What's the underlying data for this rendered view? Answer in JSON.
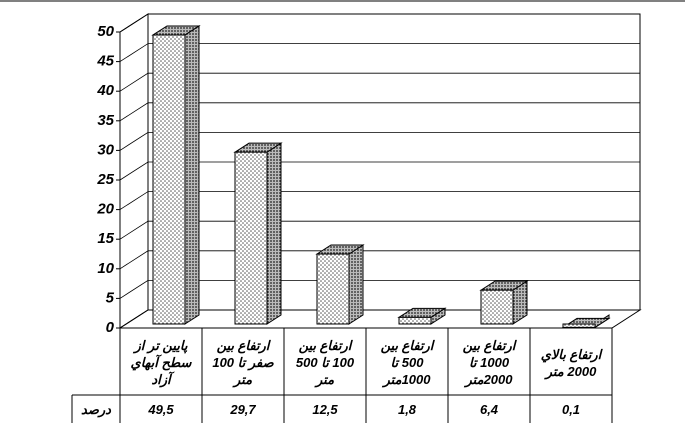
{
  "chart_data": {
    "type": "bar3d",
    "categories": [
      "پايين تر از سطح آبهاي آزاد",
      "ارتفاع بين صفر تا 100 متر",
      "ارتفاع بين 100 تا 500 متر",
      "ارتفاع بين 500 تا 1000متر",
      "ارتفاع بين 1000 تا 2000متر",
      "ارتفاع بالاي 2000 متر"
    ],
    "series": [
      {
        "name": "درصد",
        "values": [
          49.5,
          29.7,
          12.5,
          1.8,
          6.4,
          0.1
        ],
        "value_labels": [
          "49,5",
          "29,7",
          "12,5",
          "1,8",
          "6,4",
          "0,1"
        ]
      }
    ],
    "ylim": [
      0,
      50
    ],
    "yticks": [
      0,
      5,
      10,
      15,
      20,
      25,
      30,
      35,
      40,
      45,
      50
    ],
    "grid": true
  }
}
